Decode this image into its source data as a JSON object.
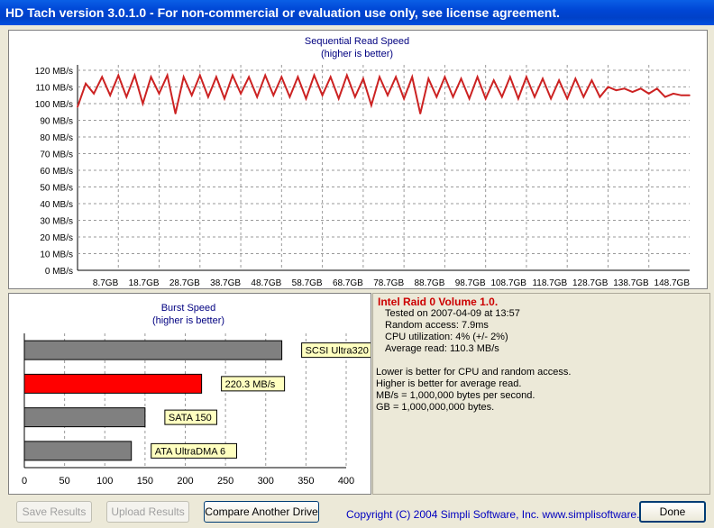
{
  "window": {
    "title": "HD Tach version 3.0.1.0  - For non-commercial or evaluation use only, see license agreement."
  },
  "seq_chart": {
    "title": "Sequential Read Speed",
    "subtitle": "(higher is better)",
    "y_ticks": [
      "120 MB/s",
      "110 MB/s",
      "100 MB/s",
      "90 MB/s",
      "80 MB/s",
      "70 MB/s",
      "60 MB/s",
      "50 MB/s",
      "40 MB/s",
      "30 MB/s",
      "20 MB/s",
      "10 MB/s",
      "0 MB/s"
    ],
    "x_ticks": [
      "8.7GB",
      "18.7GB",
      "28.7GB",
      "38.7GB",
      "48.7GB",
      "58.7GB",
      "68.7GB",
      "78.7GB",
      "88.7GB",
      "98.7GB",
      "108.7GB",
      "118.7GB",
      "128.7GB",
      "138.7GB",
      "148.7GB"
    ],
    "line_color": "#cc2222"
  },
  "burst_chart": {
    "title": "Burst Speed",
    "subtitle": "(higher is better)",
    "x_ticks": [
      "0",
      "50",
      "100",
      "150",
      "200",
      "250",
      "300",
      "350",
      "400"
    ]
  },
  "chart_data": [
    {
      "type": "line",
      "title": "Sequential Read Speed",
      "subtitle": "(higher is better)",
      "xlabel": "",
      "ylabel": "",
      "ylim": [
        0,
        125
      ],
      "xlim": [
        0,
        150
      ],
      "grid": true,
      "series": [
        {
          "x": [
            0,
            2,
            4,
            6,
            8,
            10,
            12,
            14,
            16,
            18,
            20,
            22,
            24,
            26,
            28,
            30,
            32,
            34,
            36,
            38,
            40,
            42,
            44,
            46,
            48,
            50,
            52,
            54,
            56,
            58,
            60,
            62,
            64,
            66,
            68,
            70,
            72,
            74,
            76,
            78,
            80,
            82,
            84,
            86,
            88,
            90,
            92,
            94,
            96,
            98,
            100,
            102,
            104,
            106,
            108,
            110,
            112,
            114,
            116,
            118,
            120,
            122,
            124,
            126,
            128,
            130,
            132,
            134,
            136,
            138,
            140,
            142,
            144,
            146,
            148,
            150
          ],
          "values": [
            98,
            112,
            106,
            116,
            105,
            117,
            104,
            117,
            100,
            116,
            106,
            117,
            94,
            116,
            105,
            117,
            104,
            116,
            103,
            117,
            106,
            116,
            104,
            117,
            105,
            116,
            104,
            116,
            103,
            117,
            105,
            116,
            103,
            117,
            104,
            115,
            99,
            116,
            105,
            116,
            103,
            116,
            94,
            115,
            104,
            116,
            104,
            115,
            103,
            116,
            103,
            114,
            104,
            116,
            103,
            116,
            104,
            115,
            103,
            114,
            103,
            115,
            104,
            114,
            104,
            110,
            108,
            109,
            107,
            109,
            106,
            109,
            104,
            106,
            105,
            105
          ]
        }
      ]
    },
    {
      "type": "bar",
      "title": "Burst Speed",
      "subtitle": "(higher is better)",
      "xlim": [
        0,
        400
      ],
      "categories": [
        "SCSI Ultra320",
        "220.3 MB/s",
        "SATA 150",
        "ATA UltraDMA 6"
      ],
      "values": [
        320,
        220.3,
        150,
        133
      ],
      "colors": [
        "#808080",
        "#ff0000",
        "#808080",
        "#808080"
      ]
    }
  ],
  "info": {
    "title": "Intel Raid 0 Volume 1.0.",
    "tested": "Tested on 2007-04-09 at 13:57",
    "random": "Random access: 7.9ms",
    "cpu": "CPU utilization: 4% (+/- 2%)",
    "avg": "Average read: 110.3 MB/s",
    "note1": "Lower is better for CPU and random access.",
    "note2": "Higher is better for average read.",
    "note3": "MB/s = 1,000,000 bytes per second.",
    "note4": "GB = 1,000,000,000 bytes."
  },
  "buttons": {
    "save": "Save Results",
    "upload": "Upload Results",
    "compare": "Compare Another Drive",
    "done": "Done"
  },
  "copyright": "Copyright (C) 2004 Simpli Software, Inc. www.simplisoftware.com"
}
